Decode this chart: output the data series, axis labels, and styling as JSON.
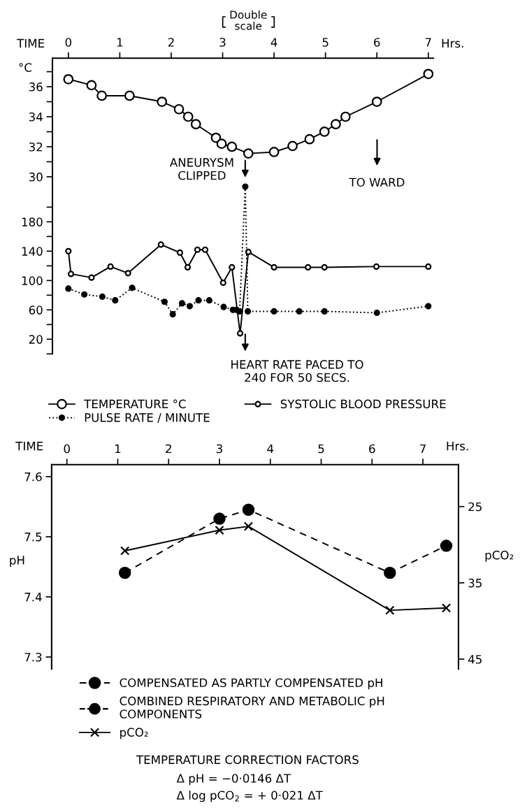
{
  "chart_data": [
    {
      "type": "line",
      "xlabel": "TIME",
      "legend": "bottom",
      "xlim": [
        -0.31,
        7.1
      ],
      "xticks": [
        0,
        1,
        2,
        3,
        4,
        5,
        6,
        7
      ],
      "ylim": [
        18.2,
        37.9
      ],
      "yticks": [
        30,
        {
          "value": 31,
          "label": null
        },
        32,
        {
          "value": 33,
          "label": null
        },
        34,
        {
          "value": 35,
          "label": null
        },
        36,
        {
          "value": 37,
          "label": null
        }
      ],
      "y2lim": [
        0,
        403
      ],
      "y2ticks": [
        {
          "value": 0,
          "label": null
        },
        20,
        {
          "value": 40,
          "label": null
        },
        60,
        {
          "value": 80,
          "label": null
        },
        100,
        {
          "value": 120,
          "label": null
        },
        140,
        {
          "value": 160,
          "label": null
        },
        180,
        {
          "value": 200,
          "label": null
        }
      ],
      "annotations": [
        "Hrs.",
        "Double\nscale",
        "ANEURYSM\nCLIPPED",
        "TO WARD",
        "HEART RATE PACED TO\n240 FOR 50 SECS.",
        "°C"
      ],
      "series": [
        {
          "name": "TEMPERATURE °C",
          "color": "#000000",
          "marker": "circle",
          "line_style": "solid",
          "x": [
            0,
            0.45,
            0.65,
            1.19,
            1.82,
            2.15,
            2.33,
            2.48,
            2.87,
            2.98,
            3.18,
            3.5,
            4.0,
            4.36,
            4.69,
            4.98,
            5.2,
            5.39,
            6.0,
            7.0
          ],
          "values": [
            36.5,
            36.1,
            35.4,
            35.4,
            35.0,
            34.5,
            34.0,
            33.5,
            32.6,
            32.2,
            32.0,
            31.55,
            31.65,
            32.05,
            32.5,
            33.0,
            33.5,
            34.0,
            35.0,
            36.85
          ]
        },
        {
          "name": "SYSTOLIC BLOOD PRESSURE",
          "color": "#000000",
          "marker": "circle",
          "line_style": "solid",
          "axis": "y2",
          "x": [
            0,
            0.05,
            0.45,
            0.82,
            1.16,
            1.8,
            2.17,
            2.32,
            2.51,
            2.66,
            3.01,
            3.18,
            3.34,
            3.5,
            4.0,
            4.66,
            4.98,
            5.99,
            7.0
          ],
          "values": [
            140,
            109,
            104,
            119,
            110,
            149,
            138,
            118,
            142,
            142,
            97,
            118,
            28,
            139,
            118,
            118,
            118,
            119,
            119
          ]
        },
        {
          "name": "PULSE RATE / MINUTE",
          "color": "#000000",
          "marker": "circle",
          "line_style": "dotted",
          "axis": "y2",
          "x": [
            0,
            0.31,
            0.66,
            0.91,
            1.24,
            1.87,
            2.03,
            2.21,
            2.36,
            2.53,
            2.74,
            3.02,
            3.2,
            3.27,
            3.33,
            3.44,
            3.49,
            4.0,
            4.49,
            4.98,
            6.0,
            7.0
          ],
          "values": [
            89,
            81,
            78,
            73,
            90,
            71,
            54,
            69,
            65,
            73,
            73,
            64,
            60,
            60,
            58,
            228,
            58,
            58,
            58,
            58,
            56,
            65
          ]
        }
      ]
    },
    {
      "type": "line",
      "xlabel": "TIME",
      "ylabel": "pH",
      "y2label": "pCO₂",
      "legend": "bottom",
      "xlim": [
        -0.3,
        7.7
      ],
      "xticks": [
        0,
        1,
        2,
        3,
        4,
        5,
        6,
        7
      ],
      "ylim": [
        7.28,
        7.62
      ],
      "yticks": [
        7.3,
        7.4,
        7.5,
        7.6
      ],
      "y2lim": [
        46.3,
        19.5
      ],
      "y2ticks": [
        25,
        35,
        45
      ],
      "annotations": [
        "Hrs.",
        "COMBINED RESPIRATORY AND METABOLIC pH\nCOMPONENTS",
        "TEMPERATURE CORRECTION FACTORS",
        "Δ pH = −0·0146 ΔT",
        "Δ log pCO$_{2}$ = + 0·021 ΔT"
      ],
      "series": [
        {
          "name": "COMPENSATED AS PARTLY COMPENSATED pH",
          "color": "#000000",
          "marker": "circle",
          "line_style": "dashed",
          "x": [
            1.14,
            3.0,
            3.57,
            6.35,
            7.46
          ],
          "values": [
            7.44,
            7.53,
            7.545,
            7.44,
            7.485
          ]
        },
        {
          "name": "pCO₂",
          "color": "#000000",
          "marker": "cross",
          "line_style": "solid",
          "axis": "y2",
          "x": [
            1.14,
            3.0,
            3.57,
            6.35,
            7.46
          ],
          "values": [
            30.8,
            28.1,
            27.6,
            38.6,
            38.3
          ]
        }
      ]
    }
  ]
}
